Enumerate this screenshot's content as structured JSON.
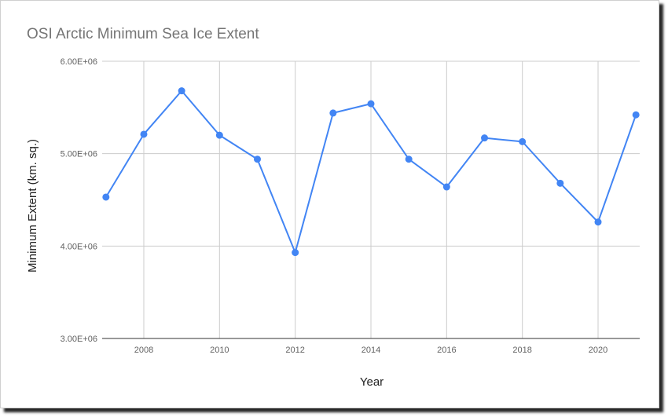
{
  "chart_data": {
    "type": "line",
    "title": "OSI Arctic Minimum Sea Ice Extent",
    "xlabel": "Year",
    "ylabel": "Minimum Extent (km. sq.)",
    "x": [
      2007,
      2008,
      2009,
      2010,
      2011,
      2012,
      2013,
      2014,
      2015,
      2016,
      2017,
      2018,
      2019,
      2020,
      2021
    ],
    "series": [
      {
        "values": [
          4530000,
          5210000,
          5680000,
          5200000,
          4940000,
          3930000,
          5440000,
          5540000,
          4940000,
          4640000,
          5170000,
          5130000,
          4680000,
          4260000,
          5420000
        ]
      }
    ],
    "xlim": [
      2006.9,
      2021.1
    ],
    "ylim": [
      3000000,
      6000000
    ],
    "x_ticks": [
      "2008",
      "2010",
      "2012",
      "2014",
      "2016",
      "2018",
      "2020"
    ],
    "x_tick_values": [
      2008,
      2010,
      2012,
      2014,
      2016,
      2018,
      2020
    ],
    "y_ticks": [
      "3.00E+06",
      "4.00E+06",
      "5.00E+06",
      "6.00E+06"
    ],
    "y_tick_values": [
      3000000,
      4000000,
      5000000,
      6000000
    ],
    "grid": true,
    "legend": "none",
    "colors": {
      "line": "#4285f4",
      "grid": "#cccccc"
    }
  }
}
